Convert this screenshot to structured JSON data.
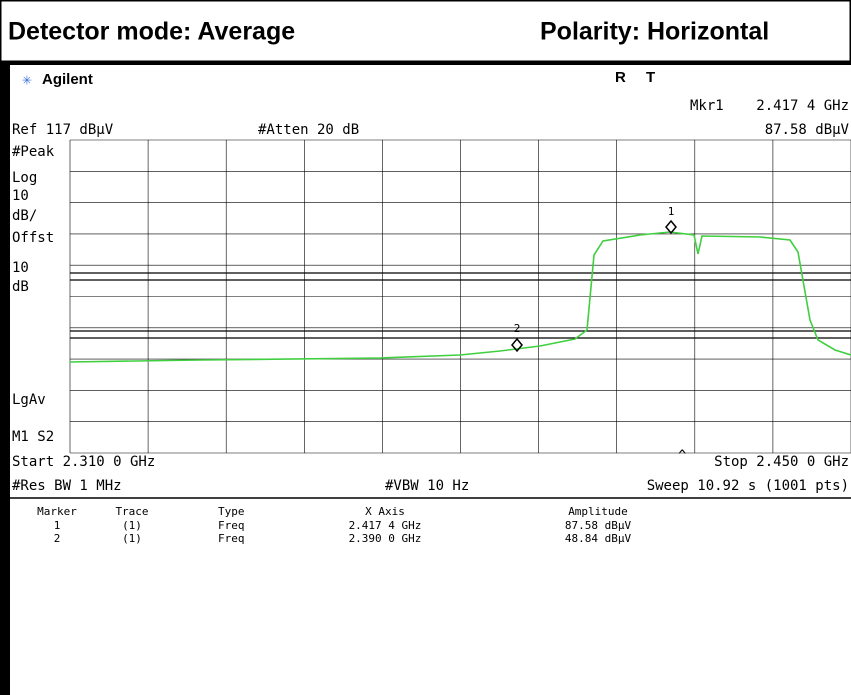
{
  "header": {
    "left": "Detector mode: Average",
    "right": "Polarity: Horizontal"
  },
  "screen": {
    "brand": "Agilent",
    "status": [
      "R",
      "T"
    ],
    "marker_readout": {
      "label": "Mkr1",
      "freq": "2.417 4 GHz",
      "amplitude": "87.58 dBµV"
    },
    "ref": "Ref 117 dBµV",
    "atten": "#Atten 20 dB",
    "left_labels": [
      "#Peak",
      "Log",
      "10",
      "dB/",
      "Offst",
      "10",
      "dB",
      "LgAv",
      "M1  S2"
    ],
    "markers": [
      "1",
      "2"
    ],
    "start": "Start 2.310 0 GHz",
    "stop": "Stop 2.450 0 GHz",
    "caret": "^",
    "res_bw": "#Res BW 1 MHz",
    "vbw": "#VBW 10 Hz",
    "sweep": "Sweep 10.92 s (1001 pts)"
  },
  "table": {
    "headers": [
      "Marker",
      "Trace",
      "Type",
      "X Axis",
      "Amplitude"
    ],
    "rows": [
      [
        "1",
        "(1)",
        "Freq",
        "2.417 4 GHz",
        "87.58 dBµV"
      ],
      [
        "2",
        "(1)",
        "Freq",
        "2.390 0 GHz",
        "48.84 dBµV"
      ]
    ]
  }
}
